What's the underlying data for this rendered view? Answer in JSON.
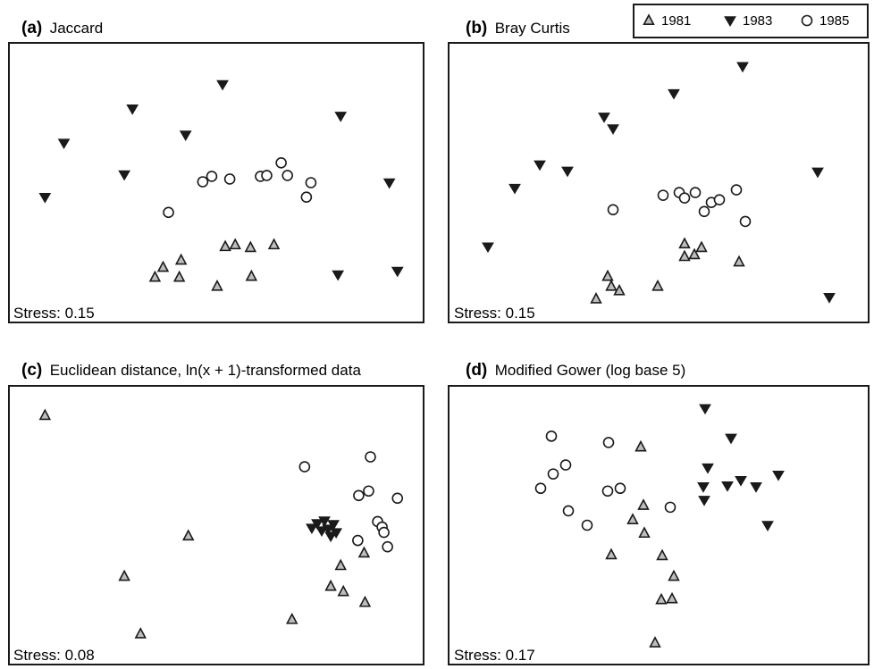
{
  "legend": {
    "entries": [
      {
        "label": "1981",
        "marker": "triangle-up-open"
      },
      {
        "label": "1983",
        "marker": "triangle-down-filled"
      },
      {
        "label": "1985",
        "marker": "circle-open"
      }
    ]
  },
  "colors": {
    "series_1981_fill": "#bdbdbd",
    "series_1983_fill": "#1a1a1a",
    "series_1985_fill": "#ffffff",
    "stroke": "#1a1a1a",
    "frame": "#1a1a1a"
  },
  "chart_data": [
    {
      "type": "scatter",
      "panel_letter": "(a)",
      "title": "Jaccard",
      "stress_label": "Stress: 0.15",
      "xlim": [
        0,
        460
      ],
      "ylim": [
        0,
        310
      ],
      "series": [
        {
          "name": "1981",
          "points": [
            [
              162,
              260
            ],
            [
              171,
              249
            ],
            [
              189,
              260
            ],
            [
              191,
              241
            ],
            [
              231,
              270
            ],
            [
              240,
              226
            ],
            [
              251,
              224
            ],
            [
              268,
              227
            ],
            [
              269,
              259
            ],
            [
              294,
              224
            ]
          ]
        },
        {
          "name": "1983",
          "points": [
            [
              40,
              171
            ],
            [
              61,
              111
            ],
            [
              128,
              146
            ],
            [
              137,
              73
            ],
            [
              196,
              102
            ],
            [
              237,
              46
            ],
            [
              368,
              81
            ],
            [
              365,
              257
            ],
            [
              422,
              155
            ],
            [
              431,
              253
            ]
          ]
        },
        {
          "name": "1985",
          "points": [
            [
              177,
              188
            ],
            [
              215,
              154
            ],
            [
              225,
              148
            ],
            [
              245,
              151
            ],
            [
              279,
              148
            ],
            [
              286,
              147
            ],
            [
              302,
              133
            ],
            [
              309,
              147
            ],
            [
              330,
              171
            ],
            [
              335,
              155
            ]
          ]
        }
      ]
    },
    {
      "type": "scatter",
      "panel_letter": "(b)",
      "title": "Bray Curtis",
      "stress_label": "Stress: 0.15",
      "xlim": [
        0,
        470
      ],
      "ylim": [
        0,
        310
      ],
      "series": [
        {
          "name": "1981",
          "points": [
            [
              165,
              284
            ],
            [
              178,
              259
            ],
            [
              182,
              270
            ],
            [
              191,
              275
            ],
            [
              234,
              270
            ],
            [
              264,
              223
            ],
            [
              264,
              237
            ],
            [
              275,
              235
            ],
            [
              283,
              227
            ],
            [
              325,
              243
            ]
          ]
        },
        {
          "name": "1983",
          "points": [
            [
              44,
              226
            ],
            [
              74,
              161
            ],
            [
              102,
              135
            ],
            [
              133,
              142
            ],
            [
              174,
              82
            ],
            [
              184,
              95
            ],
            [
              252,
              56
            ],
            [
              329,
              26
            ],
            [
              413,
              143
            ],
            [
              426,
              282
            ]
          ]
        },
        {
          "name": "1985",
          "points": [
            [
              184,
              185
            ],
            [
              240,
              169
            ],
            [
              258,
              166
            ],
            [
              264,
              172
            ],
            [
              276,
              166
            ],
            [
              286,
              187
            ],
            [
              294,
              177
            ],
            [
              303,
              174
            ],
            [
              322,
              163
            ],
            [
              332,
              198
            ]
          ]
        }
      ]
    },
    {
      "type": "scatter",
      "panel_letter": "(c)",
      "title": "Euclidean distance, ln(x + 1)-transformed data",
      "stress_label": "Stress: 0.08",
      "xlim": [
        0,
        460
      ],
      "ylim": [
        0,
        310
      ],
      "series": [
        {
          "name": "1981",
          "points": [
            [
              40,
              33
            ],
            [
              128,
              212
            ],
            [
              146,
              276
            ],
            [
              199,
              167
            ],
            [
              314,
              260
            ],
            [
              357,
              223
            ],
            [
              368,
              200
            ],
            [
              371,
              229
            ],
            [
              394,
              186
            ],
            [
              395,
              241
            ]
          ]
        },
        {
          "name": "1983",
          "points": [
            [
              336,
              158
            ],
            [
              342,
              153
            ],
            [
              347,
              161
            ],
            [
              350,
              150
            ],
            [
              354,
              159
            ],
            [
              357,
              167
            ],
            [
              360,
              154
            ],
            [
              363,
              163
            ]
          ]
        },
        {
          "name": "1985",
          "points": [
            [
              328,
              90
            ],
            [
              387,
              172
            ],
            [
              388,
              122
            ],
            [
              399,
              117
            ],
            [
              401,
              79
            ],
            [
              409,
              151
            ],
            [
              414,
              157
            ],
            [
              416,
              163
            ],
            [
              420,
              179
            ],
            [
              431,
              125
            ]
          ]
        }
      ]
    },
    {
      "type": "scatter",
      "panel_letter": "(d)",
      "title": "Modified Gower (log base 5)",
      "stress_label": "Stress: 0.17",
      "xlim": [
        0,
        470
      ],
      "ylim": [
        0,
        310
      ],
      "series": [
        {
          "name": "1981",
          "points": [
            [
              182,
              188
            ],
            [
              206,
              149
            ],
            [
              215,
              68
            ],
            [
              218,
              133
            ],
            [
              219,
              164
            ],
            [
              238,
              238
            ],
            [
              239,
              189
            ],
            [
              250,
              237
            ],
            [
              252,
              212
            ],
            [
              231,
              286
            ]
          ]
        },
        {
          "name": "1983",
          "points": [
            [
              285,
              112
            ],
            [
              286,
              127
            ],
            [
              287,
              25
            ],
            [
              290,
              91
            ],
            [
              312,
              111
            ],
            [
              316,
              58
            ],
            [
              327,
              105
            ],
            [
              344,
              112
            ],
            [
              357,
              155
            ],
            [
              369,
              99
            ]
          ]
        },
        {
          "name": "1985",
          "points": [
            [
              103,
              114
            ],
            [
              115,
              56
            ],
            [
              117,
              98
            ],
            [
              131,
              88
            ],
            [
              134,
              139
            ],
            [
              155,
              155
            ],
            [
              178,
              117
            ],
            [
              179,
              63
            ],
            [
              192,
              114
            ],
            [
              248,
              135
            ]
          ]
        }
      ]
    }
  ]
}
